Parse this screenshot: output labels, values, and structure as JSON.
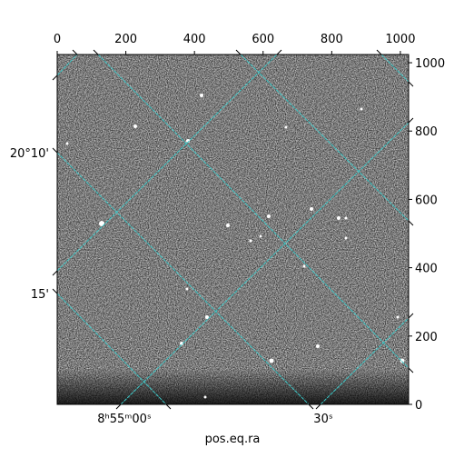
{
  "chart_data": {
    "type": "image",
    "xlabel": "pos.eq.ra",
    "xlim": [
      0,
      1024
    ],
    "xticks": [
      0,
      200,
      400,
      600,
      800,
      1000
    ],
    "ylim": [
      0,
      1024
    ],
    "yticks": [
      0,
      200,
      400,
      600,
      800,
      1000
    ],
    "ra_ticks": [
      "8ʰ55ᵐ00ˢ",
      "30ˢ"
    ],
    "dec_ticks": [
      "20°10'",
      "15'"
    ]
  }
}
